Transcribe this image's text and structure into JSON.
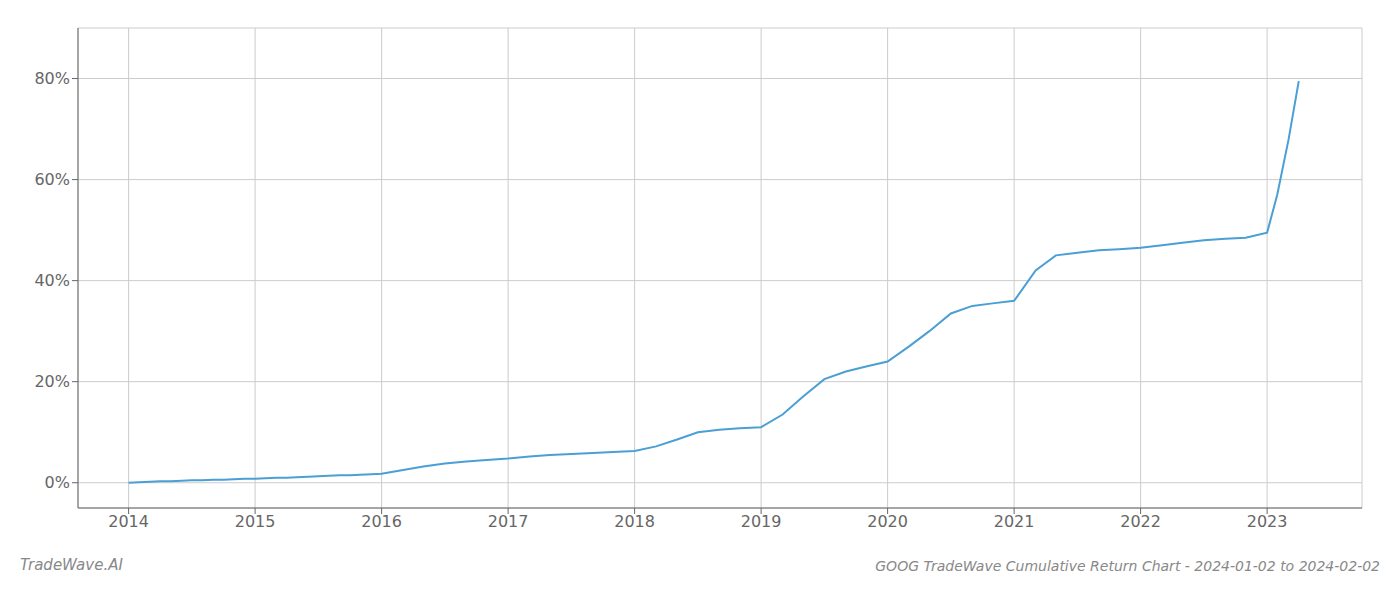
{
  "chart_data": {
    "type": "line",
    "title": "GOOG TradeWave Cumulative Return Chart - 2024-01-02 to 2024-02-02",
    "annotations": [
      "TradeWave.AI"
    ],
    "x": [
      2014.0,
      2014.08,
      2014.17,
      2014.25,
      2014.33,
      2014.42,
      2014.5,
      2014.58,
      2014.67,
      2014.75,
      2014.83,
      2014.92,
      2015.0,
      2015.08,
      2015.17,
      2015.25,
      2015.33,
      2015.42,
      2015.5,
      2015.58,
      2015.67,
      2015.75,
      2015.83,
      2015.92,
      2016.0,
      2016.17,
      2016.33,
      2016.5,
      2016.67,
      2016.83,
      2017.0,
      2017.17,
      2017.33,
      2017.5,
      2017.67,
      2017.83,
      2018.0,
      2018.17,
      2018.33,
      2018.5,
      2018.67,
      2018.83,
      2019.0,
      2019.17,
      2019.33,
      2019.5,
      2019.67,
      2019.83,
      2020.0,
      2020.17,
      2020.33,
      2020.5,
      2020.67,
      2020.83,
      2021.0,
      2021.17,
      2021.33,
      2021.5,
      2021.67,
      2021.83,
      2022.0,
      2022.17,
      2022.33,
      2022.5,
      2022.67,
      2022.83,
      2023.0,
      2023.08,
      2023.17,
      2023.25
    ],
    "values": [
      0.0,
      0.1,
      0.2,
      0.3,
      0.3,
      0.4,
      0.5,
      0.5,
      0.6,
      0.6,
      0.7,
      0.8,
      0.8,
      0.9,
      1.0,
      1.0,
      1.1,
      1.2,
      1.3,
      1.4,
      1.5,
      1.5,
      1.6,
      1.7,
      1.8,
      2.5,
      3.2,
      3.8,
      4.2,
      4.5,
      4.8,
      5.2,
      5.5,
      5.7,
      5.9,
      6.1,
      6.3,
      7.2,
      8.5,
      10.0,
      10.5,
      10.8,
      11.0,
      13.5,
      17.0,
      20.5,
      22.0,
      23.0,
      24.0,
      27.0,
      30.0,
      33.5,
      35.0,
      35.5,
      36.0,
      42.0,
      45.0,
      45.5,
      46.0,
      46.2,
      46.5,
      47.0,
      47.5,
      48.0,
      48.3,
      48.5,
      49.5,
      57.0,
      68.0,
      79.5
    ],
    "color": "#4a9fd4",
    "xlim": [
      2013.6,
      2023.75
    ],
    "xticks": [
      2014,
      2015,
      2016,
      2017,
      2018,
      2019,
      2020,
      2021,
      2022,
      2023
    ],
    "ylim": [
      -5,
      90
    ],
    "yticks": [
      {
        "value": 0,
        "label": "0%"
      },
      {
        "value": 20,
        "label": "20%"
      },
      {
        "value": 40,
        "label": "40%"
      },
      {
        "value": 60,
        "label": "60%"
      },
      {
        "value": 80,
        "label": "80%"
      }
    ],
    "grid": true
  }
}
